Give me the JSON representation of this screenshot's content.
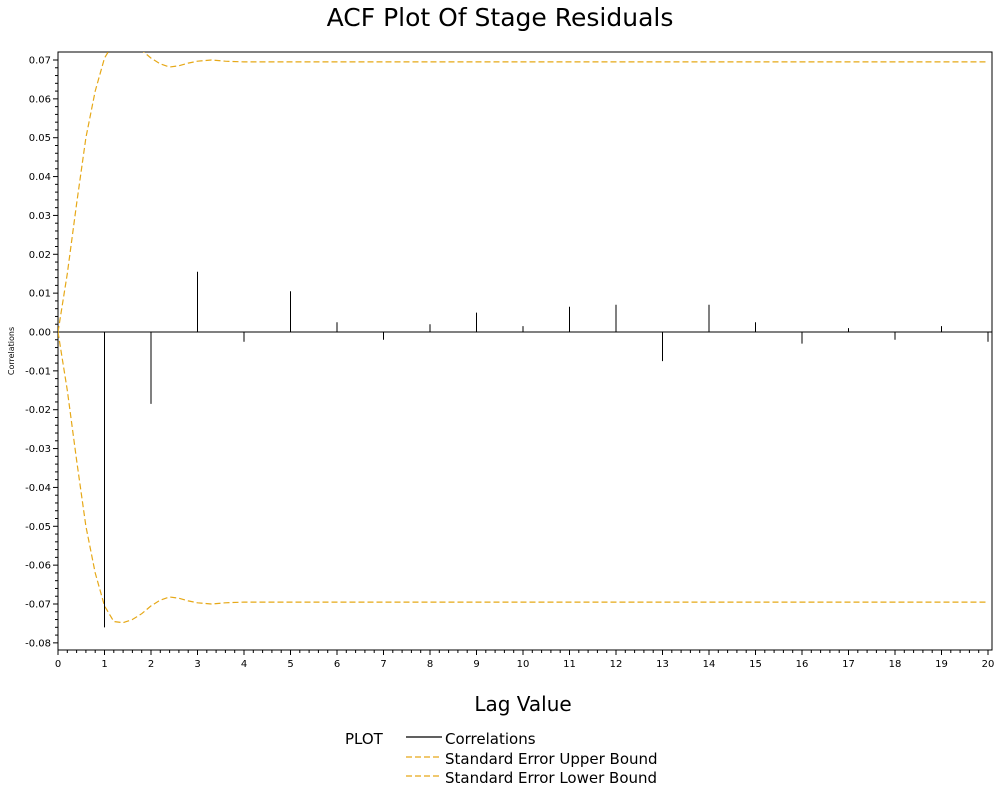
{
  "chart_data": {
    "type": "bar",
    "title": "ACF Plot Of Stage Residuals",
    "xlabel": "Lag Value",
    "ylabel": "Correlations",
    "xlim": [
      0,
      20
    ],
    "ylim": [
      -0.08,
      0.07
    ],
    "x_ticks": [
      "0",
      "1",
      "2",
      "3",
      "4",
      "5",
      "6",
      "7",
      "8",
      "9",
      "10",
      "11",
      "12",
      "13",
      "14",
      "15",
      "16",
      "17",
      "18",
      "19",
      "20"
    ],
    "y_ticks": [
      "0.07",
      "0.06",
      "0.05",
      "0.04",
      "0.03",
      "0.02",
      "0.01",
      "0.00",
      "-0.01",
      "-0.02",
      "-0.03",
      "-0.04",
      "-0.05",
      "-0.06",
      "-0.07",
      "-0.08"
    ],
    "grid": false,
    "legend": {
      "title": "PLOT",
      "position": "bottom",
      "entries": [
        "Correlations",
        "Standard Error Upper Bound",
        "Standard Error Lower Bound"
      ]
    },
    "colors": {
      "correlations": "#000000",
      "bounds": "#e6a817"
    },
    "series": [
      {
        "name": "Correlations",
        "x": [
          1,
          2,
          3,
          4,
          5,
          6,
          7,
          8,
          9,
          10,
          11,
          12,
          13,
          14,
          15,
          16,
          17,
          18,
          19,
          20
        ],
        "values": [
          -0.076,
          -0.0185,
          0.0155,
          -0.0025,
          0.0105,
          0.0025,
          -0.002,
          0.002,
          0.005,
          0.0015,
          0.0065,
          0.007,
          -0.0075,
          0.007,
          0.0025,
          -0.003,
          0.001,
          -0.002,
          0.0015,
          -0.0025
        ]
      },
      {
        "name": "Standard Error Upper Bound",
        "x": [
          0,
          0.2,
          0.4,
          0.6,
          0.8,
          1.0,
          1.2,
          1.4,
          1.6,
          1.8,
          2.0,
          2.2,
          2.4,
          2.6,
          2.8,
          3.0,
          3.3,
          3.6,
          4.0,
          5,
          6,
          8,
          10,
          12,
          14,
          16,
          18,
          20
        ],
        "values": [
          0,
          0.015,
          0.033,
          0.05,
          0.062,
          0.0705,
          0.0745,
          0.0748,
          0.074,
          0.0725,
          0.0705,
          0.069,
          0.0682,
          0.0685,
          0.0692,
          0.0697,
          0.07,
          0.0697,
          0.0695,
          0.0695,
          0.0695,
          0.0695,
          0.0695,
          0.0695,
          0.0695,
          0.0695,
          0.0695,
          0.0695
        ]
      },
      {
        "name": "Standard Error Lower Bound",
        "x": [
          0,
          0.2,
          0.4,
          0.6,
          0.8,
          1.0,
          1.2,
          1.4,
          1.6,
          1.8,
          2.0,
          2.2,
          2.4,
          2.6,
          2.8,
          3.0,
          3.3,
          3.6,
          4.0,
          5,
          6,
          8,
          10,
          12,
          14,
          16,
          18,
          20
        ],
        "values": [
          0,
          -0.015,
          -0.033,
          -0.05,
          -0.062,
          -0.0705,
          -0.0745,
          -0.0748,
          -0.074,
          -0.0725,
          -0.0705,
          -0.069,
          -0.0682,
          -0.0685,
          -0.0692,
          -0.0697,
          -0.07,
          -0.0697,
          -0.0695,
          -0.0695,
          -0.0695,
          -0.0695,
          -0.0695,
          -0.0695,
          -0.0695,
          -0.0695,
          -0.0695,
          -0.0695
        ]
      }
    ]
  }
}
